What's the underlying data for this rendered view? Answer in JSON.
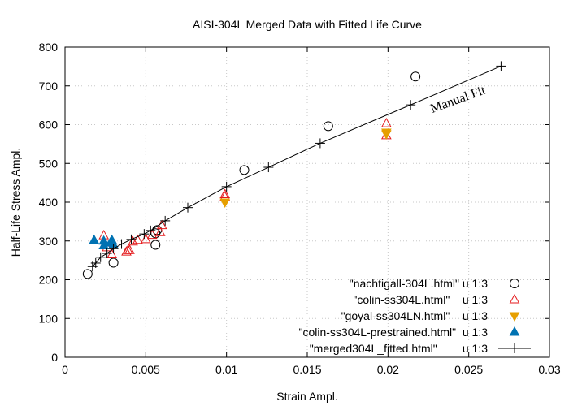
{
  "chart_data": {
    "type": "scatter",
    "title": "AISI-304L Merged Data with Fitted Life Curve",
    "xlabel": "Strain Ampl.",
    "ylabel": "Half-Life Stress Ampl.",
    "xlim": [
      0,
      0.03
    ],
    "ylim": [
      0,
      800
    ],
    "x_ticks": [
      0,
      0.005,
      0.01,
      0.015,
      0.02,
      0.025,
      0.03
    ],
    "x_tick_labels": [
      "0",
      "0.005",
      "0.01",
      "0.015",
      "0.02",
      "0.025",
      "0.03"
    ],
    "y_ticks": [
      0,
      100,
      200,
      300,
      400,
      500,
      600,
      700,
      800
    ],
    "y_tick_labels": [
      "0",
      "100",
      "200",
      "300",
      "400",
      "500",
      "600",
      "700",
      "800"
    ],
    "grid": "dotted",
    "legend_position": "bottom-right",
    "annotation": "Manual Fit",
    "series": [
      {
        "name": "\"nachtigall-304L.html\" u 1:3",
        "marker": "open-circle",
        "color": "#000000",
        "points": [
          [
            0.0014,
            215
          ],
          [
            0.003,
            244
          ],
          [
            0.0056,
            290
          ],
          [
            0.0056,
            320
          ],
          [
            0.0057,
            328
          ],
          [
            0.0111,
            483
          ],
          [
            0.0163,
            596
          ],
          [
            0.0217,
            724
          ]
        ]
      },
      {
        "name": "\"colin-ss304L.html\"    u 1:3",
        "marker": "open-triangle-up",
        "color": "#e41a1c",
        "points": [
          [
            0.0024,
            314
          ],
          [
            0.0026,
            283
          ],
          [
            0.0029,
            265
          ],
          [
            0.0038,
            272
          ],
          [
            0.0039,
            276
          ],
          [
            0.004,
            276
          ],
          [
            0.0042,
            298
          ],
          [
            0.0045,
            302
          ],
          [
            0.005,
            304
          ],
          [
            0.0054,
            315
          ],
          [
            0.0059,
            322
          ],
          [
            0.006,
            340
          ],
          [
            0.0099,
            420
          ],
          [
            0.0099,
            414
          ],
          [
            0.0199,
            603
          ],
          [
            0.0199,
            572
          ]
        ]
      },
      {
        "name": "\"goyal-ss304LN.html\"    u 1:3",
        "marker": "filled-triangle-down",
        "color": "#e69f00",
        "points": [
          [
            0.0099,
            400
          ],
          [
            0.0199,
            576
          ],
          [
            0.0199,
            580
          ]
        ]
      },
      {
        "name": "\"colin-ss304L-prestrained.html\"  u 1:3",
        "marker": "filled-triangle-up",
        "color": "#0072b2",
        "points": [
          [
            0.0018,
            302
          ],
          [
            0.0024,
            300
          ],
          [
            0.0024,
            288
          ],
          [
            0.0028,
            295
          ],
          [
            0.003,
            290
          ],
          [
            0.0029,
            302
          ]
        ]
      },
      {
        "name": "\"merged304L_fitted.html\"        u 1:3",
        "marker": "plus-line",
        "color": "#000000",
        "points": [
          [
            0.0017,
            234
          ],
          [
            0.0019,
            243
          ],
          [
            0.0022,
            258
          ],
          [
            0.0026,
            268
          ],
          [
            0.003,
            280
          ],
          [
            0.0035,
            292
          ],
          [
            0.0041,
            304
          ],
          [
            0.0049,
            318
          ],
          [
            0.0053,
            327
          ],
          [
            0.0062,
            352
          ],
          [
            0.0076,
            386
          ],
          [
            0.01,
            440
          ],
          [
            0.0126,
            490
          ],
          [
            0.0158,
            552
          ],
          [
            0.0214,
            651
          ],
          [
            0.027,
            751
          ]
        ]
      }
    ]
  }
}
